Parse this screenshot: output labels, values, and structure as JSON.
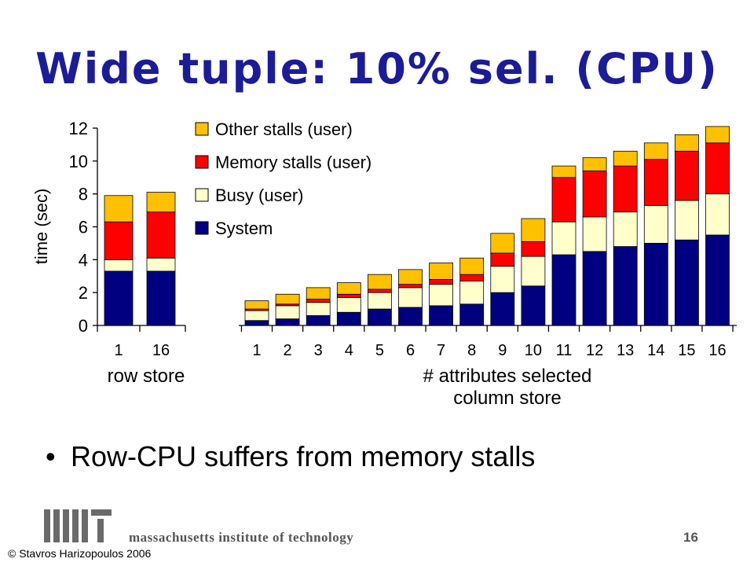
{
  "slide": {
    "title": "Wide tuple: 10% sel. (CPU)",
    "bullet": "Row-CPU suffers from memory stalls",
    "footer_institution": "massachusetts institute of technology",
    "page_number": "16",
    "copyright": "© Stavros Harizopoulos 2006",
    "logo": "mit-logo"
  },
  "chart_data": [
    {
      "type": "bar",
      "stacked": true,
      "panel": "row store",
      "categories": [
        "1",
        "16"
      ],
      "xlabel": "row store",
      "ylabel": "time (sec)",
      "ylim": [
        0,
        12
      ],
      "yticks": [
        0,
        2,
        4,
        6,
        8,
        10,
        12
      ],
      "series": [
        {
          "name": "System",
          "color": "#000080",
          "values": [
            3.3,
            3.3
          ]
        },
        {
          "name": "Busy (user)",
          "color": "#ffffcc",
          "values": [
            0.7,
            0.8
          ]
        },
        {
          "name": "Memory stalls (user)",
          "color": "#ff0000",
          "values": [
            2.3,
            2.8
          ]
        },
        {
          "name": "Other stalls (user)",
          "color": "#ffc000",
          "values": [
            1.6,
            1.2
          ]
        }
      ]
    },
    {
      "type": "bar",
      "stacked": true,
      "panel": "column store",
      "categories": [
        "1",
        "2",
        "3",
        "4",
        "5",
        "6",
        "7",
        "8",
        "9",
        "10",
        "11",
        "12",
        "13",
        "14",
        "15",
        "16"
      ],
      "xlabel": "# attributes selected",
      "xlabel2": "column store",
      "ylim": [
        0,
        12
      ],
      "series": [
        {
          "name": "System",
          "color": "#000080",
          "values": [
            0.3,
            0.4,
            0.6,
            0.8,
            1.0,
            1.1,
            1.2,
            1.3,
            2.0,
            2.4,
            4.3,
            4.5,
            4.8,
            5.0,
            5.2,
            5.5
          ]
        },
        {
          "name": "Busy (user)",
          "color": "#ffffcc",
          "values": [
            0.6,
            0.8,
            0.8,
            0.9,
            1.0,
            1.2,
            1.3,
            1.4,
            1.6,
            1.8,
            2.0,
            2.1,
            2.1,
            2.3,
            2.4,
            2.5
          ]
        },
        {
          "name": "Memory stalls (user)",
          "color": "#ff0000",
          "values": [
            0.1,
            0.1,
            0.2,
            0.2,
            0.2,
            0.2,
            0.3,
            0.4,
            0.8,
            0.9,
            2.7,
            2.8,
            2.8,
            2.8,
            3.0,
            3.1
          ]
        },
        {
          "name": "Other stalls (user)",
          "color": "#ffc000",
          "values": [
            0.5,
            0.6,
            0.7,
            0.7,
            0.9,
            0.9,
            1.0,
            1.0,
            1.2,
            1.4,
            0.7,
            0.8,
            0.9,
            1.0,
            1.0,
            1.0
          ]
        }
      ]
    }
  ],
  "legend": {
    "placement": "top-center",
    "order": [
      "Other stalls (user)",
      "Memory stalls (user)",
      "Busy (user)",
      "System"
    ]
  }
}
